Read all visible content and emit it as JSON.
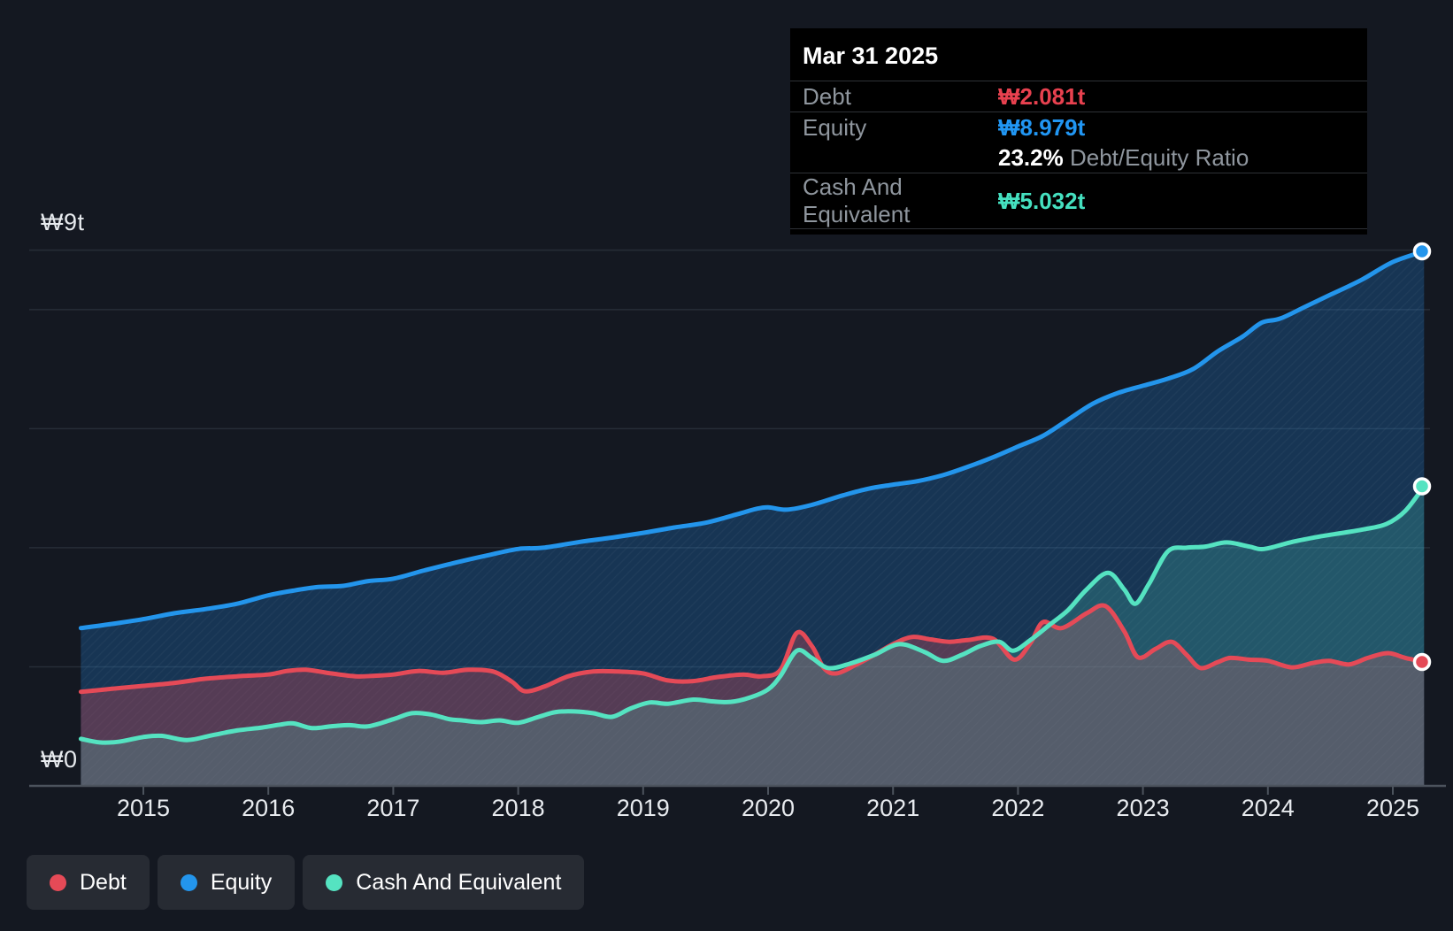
{
  "tooltip": {
    "date": "Mar 31 2025",
    "debt": {
      "label": "Debt",
      "value": "₩2.081t"
    },
    "equity": {
      "label": "Equity",
      "value": "₩8.979t"
    },
    "ratio": {
      "strong": "23.2%",
      "rest": " Debt/Equity Ratio"
    },
    "cash": {
      "label": "Cash And Equivalent",
      "value": "₩5.032t"
    }
  },
  "y_axis": {
    "top_label": "₩9t",
    "zero_label": "₩0"
  },
  "x_axis": {
    "years": [
      "2015",
      "2016",
      "2017",
      "2018",
      "2019",
      "2020",
      "2021",
      "2022",
      "2023",
      "2024",
      "2025"
    ]
  },
  "legend": {
    "items": [
      {
        "id": "debt",
        "label": "Debt",
        "color": "#e54a57"
      },
      {
        "id": "equity",
        "label": "Equity",
        "color": "#2395ec"
      },
      {
        "id": "cash",
        "label": "Cash And Equivalent",
        "color": "#55e3c1"
      }
    ]
  },
  "colors": {
    "background": "#141821",
    "gridline": "#272d37",
    "axis": "#4c535d",
    "tooltip_bg": "#000000",
    "debt": "#e54a57",
    "equity": "#2395ec",
    "cash": "#55e3c1"
  },
  "chart_data": {
    "type": "area",
    "title": "Debt to Equity history",
    "x_unit": "year",
    "y_unit": "KRW trillions",
    "x_range": [
      2014.53,
      2025.25
    ],
    "y_range": [
      0,
      9
    ],
    "gridline_values": [
      9,
      8,
      6,
      4,
      2,
      0
    ],
    "labeled_gridlines": {
      "9": "₩9t",
      "0": "₩0"
    },
    "legend_position": "bottom-left",
    "end_date": "Mar 31 2025",
    "end_values": {
      "debt": 2.081,
      "equity": 8.979,
      "cash": 5.032,
      "debt_equity_ratio_pct": 23.2
    },
    "series": [
      {
        "name": "Equity",
        "z": 0,
        "color": "#2395ec",
        "fill": "rgba(35,140,230,0.26)",
        "end_marker": true,
        "points": [
          [
            2014.5,
            2.65
          ],
          [
            2014.75,
            2.72
          ],
          [
            2015,
            2.8
          ],
          [
            2015.25,
            2.9
          ],
          [
            2015.5,
            2.97
          ],
          [
            2015.75,
            3.06
          ],
          [
            2016,
            3.2
          ],
          [
            2016.2,
            3.28
          ],
          [
            2016.4,
            3.34
          ],
          [
            2016.6,
            3.36
          ],
          [
            2016.8,
            3.44
          ],
          [
            2017,
            3.48
          ],
          [
            2017.25,
            3.62
          ],
          [
            2017.5,
            3.75
          ],
          [
            2017.75,
            3.87
          ],
          [
            2018,
            3.98
          ],
          [
            2018.2,
            4.0
          ],
          [
            2018.5,
            4.1
          ],
          [
            2018.75,
            4.17
          ],
          [
            2019,
            4.25
          ],
          [
            2019.25,
            4.34
          ],
          [
            2019.5,
            4.42
          ],
          [
            2019.75,
            4.56
          ],
          [
            2019.9,
            4.65
          ],
          [
            2020,
            4.68
          ],
          [
            2020.15,
            4.64
          ],
          [
            2020.35,
            4.72
          ],
          [
            2020.6,
            4.88
          ],
          [
            2020.8,
            4.99
          ],
          [
            2021,
            5.06
          ],
          [
            2021.2,
            5.12
          ],
          [
            2021.4,
            5.22
          ],
          [
            2021.6,
            5.36
          ],
          [
            2021.8,
            5.52
          ],
          [
            2022,
            5.7
          ],
          [
            2022.2,
            5.88
          ],
          [
            2022.4,
            6.15
          ],
          [
            2022.6,
            6.42
          ],
          [
            2022.8,
            6.6
          ],
          [
            2023,
            6.72
          ],
          [
            2023.2,
            6.84
          ],
          [
            2023.4,
            7.0
          ],
          [
            2023.6,
            7.3
          ],
          [
            2023.8,
            7.55
          ],
          [
            2023.95,
            7.78
          ],
          [
            2024.1,
            7.85
          ],
          [
            2024.3,
            8.05
          ],
          [
            2024.5,
            8.25
          ],
          [
            2024.75,
            8.5
          ],
          [
            2025,
            8.8
          ],
          [
            2025.25,
            8.979
          ]
        ]
      },
      {
        "name": "Debt",
        "z": 1,
        "color": "#e54a57",
        "fill": "rgba(230,75,90,0.30)",
        "end_marker": true,
        "points": [
          [
            2014.5,
            1.58
          ],
          [
            2014.75,
            1.63
          ],
          [
            2015,
            1.68
          ],
          [
            2015.25,
            1.73
          ],
          [
            2015.5,
            1.8
          ],
          [
            2015.75,
            1.84
          ],
          [
            2016,
            1.87
          ],
          [
            2016.15,
            1.93
          ],
          [
            2016.3,
            1.95
          ],
          [
            2016.5,
            1.89
          ],
          [
            2016.7,
            1.84
          ],
          [
            2016.85,
            1.85
          ],
          [
            2017,
            1.87
          ],
          [
            2017.2,
            1.93
          ],
          [
            2017.4,
            1.9
          ],
          [
            2017.6,
            1.95
          ],
          [
            2017.8,
            1.92
          ],
          [
            2017.95,
            1.75
          ],
          [
            2018.05,
            1.59
          ],
          [
            2018.2,
            1.66
          ],
          [
            2018.4,
            1.84
          ],
          [
            2018.6,
            1.92
          ],
          [
            2018.8,
            1.92
          ],
          [
            2019,
            1.89
          ],
          [
            2019.2,
            1.77
          ],
          [
            2019.4,
            1.76
          ],
          [
            2019.6,
            1.83
          ],
          [
            2019.8,
            1.87
          ],
          [
            2019.95,
            1.84
          ],
          [
            2020.1,
            1.95
          ],
          [
            2020.23,
            2.57
          ],
          [
            2020.35,
            2.35
          ],
          [
            2020.45,
            1.97
          ],
          [
            2020.55,
            1.89
          ],
          [
            2020.7,
            2.03
          ],
          [
            2020.85,
            2.2
          ],
          [
            2021,
            2.38
          ],
          [
            2021.15,
            2.5
          ],
          [
            2021.3,
            2.46
          ],
          [
            2021.45,
            2.42
          ],
          [
            2021.6,
            2.45
          ],
          [
            2021.8,
            2.47
          ],
          [
            2021.97,
            2.12
          ],
          [
            2022.1,
            2.4
          ],
          [
            2022.2,
            2.75
          ],
          [
            2022.35,
            2.65
          ],
          [
            2022.55,
            2.9
          ],
          [
            2022.7,
            3.02
          ],
          [
            2022.85,
            2.6
          ],
          [
            2022.96,
            2.16
          ],
          [
            2023.1,
            2.3
          ],
          [
            2023.23,
            2.42
          ],
          [
            2023.35,
            2.2
          ],
          [
            2023.46,
            1.98
          ],
          [
            2023.6,
            2.08
          ],
          [
            2023.7,
            2.15
          ],
          [
            2023.85,
            2.12
          ],
          [
            2024,
            2.1
          ],
          [
            2024.19,
            1.99
          ],
          [
            2024.35,
            2.06
          ],
          [
            2024.49,
            2.1
          ],
          [
            2024.65,
            2.04
          ],
          [
            2024.8,
            2.15
          ],
          [
            2024.96,
            2.23
          ],
          [
            2025.1,
            2.15
          ],
          [
            2025.25,
            2.081
          ]
        ]
      },
      {
        "name": "Cash And Equivalent",
        "z": 2,
        "color": "#55e3c1",
        "fill": "rgba(85,227,193,0.20)",
        "end_marker": true,
        "points": [
          [
            2014.5,
            0.79
          ],
          [
            2014.65,
            0.73
          ],
          [
            2014.8,
            0.74
          ],
          [
            2015,
            0.82
          ],
          [
            2015.15,
            0.84
          ],
          [
            2015.35,
            0.77
          ],
          [
            2015.55,
            0.85
          ],
          [
            2015.75,
            0.93
          ],
          [
            2015.95,
            0.98
          ],
          [
            2016.1,
            1.03
          ],
          [
            2016.2,
            1.05
          ],
          [
            2016.35,
            0.97
          ],
          [
            2016.5,
            1.0
          ],
          [
            2016.65,
            1.02
          ],
          [
            2016.8,
            1.0
          ],
          [
            2017,
            1.12
          ],
          [
            2017.15,
            1.22
          ],
          [
            2017.3,
            1.2
          ],
          [
            2017.45,
            1.12
          ],
          [
            2017.55,
            1.1
          ],
          [
            2017.7,
            1.07
          ],
          [
            2017.85,
            1.1
          ],
          [
            2018,
            1.06
          ],
          [
            2018.15,
            1.15
          ],
          [
            2018.3,
            1.24
          ],
          [
            2018.45,
            1.25
          ],
          [
            2018.6,
            1.22
          ],
          [
            2018.75,
            1.16
          ],
          [
            2018.9,
            1.3
          ],
          [
            2019.05,
            1.4
          ],
          [
            2019.2,
            1.38
          ],
          [
            2019.4,
            1.45
          ],
          [
            2019.55,
            1.42
          ],
          [
            2019.7,
            1.41
          ],
          [
            2019.85,
            1.48
          ],
          [
            2020,
            1.62
          ],
          [
            2020.1,
            1.85
          ],
          [
            2020.23,
            2.27
          ],
          [
            2020.35,
            2.15
          ],
          [
            2020.48,
            1.98
          ],
          [
            2020.65,
            2.05
          ],
          [
            2020.85,
            2.2
          ],
          [
            2021.05,
            2.38
          ],
          [
            2021.25,
            2.25
          ],
          [
            2021.4,
            2.1
          ],
          [
            2021.55,
            2.2
          ],
          [
            2021.7,
            2.35
          ],
          [
            2021.85,
            2.42
          ],
          [
            2021.96,
            2.27
          ],
          [
            2022.1,
            2.45
          ],
          [
            2022.25,
            2.7
          ],
          [
            2022.4,
            2.95
          ],
          [
            2022.55,
            3.3
          ],
          [
            2022.72,
            3.58
          ],
          [
            2022.85,
            3.3
          ],
          [
            2022.94,
            3.06
          ],
          [
            2023.05,
            3.4
          ],
          [
            2023.2,
            3.94
          ],
          [
            2023.35,
            4.0
          ],
          [
            2023.5,
            4.02
          ],
          [
            2023.67,
            4.09
          ],
          [
            2023.85,
            4.02
          ],
          [
            2023.97,
            3.98
          ],
          [
            2024.2,
            4.1
          ],
          [
            2024.42,
            4.19
          ],
          [
            2024.6,
            4.25
          ],
          [
            2024.77,
            4.31
          ],
          [
            2024.95,
            4.4
          ],
          [
            2025.1,
            4.62
          ],
          [
            2025.25,
            5.032
          ]
        ]
      }
    ]
  }
}
